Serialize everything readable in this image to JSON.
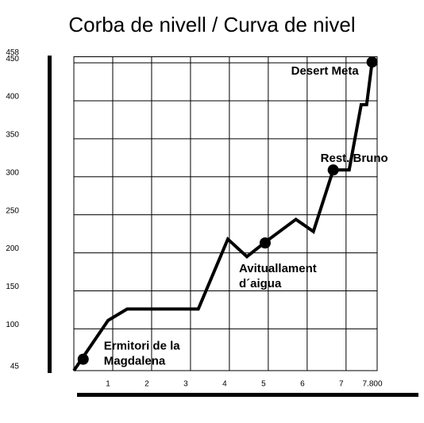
{
  "chart_data": {
    "type": "line",
    "title": "Corba de nivell / Curva de nivel",
    "x": [
      0,
      0.88,
      1.37,
      3.2,
      3.96,
      4.45,
      4.92,
      5.71,
      6.16,
      6.67,
      7.08,
      7.39,
      7.53,
      7.67
    ],
    "values": [
      45,
      111,
      126,
      126,
      218,
      195,
      214,
      244,
      228,
      309,
      309,
      395,
      395,
      451
    ],
    "color": "#000000",
    "xlim": [
      0,
      7.8
    ],
    "xticks": [
      1,
      2,
      3,
      4,
      5,
      6,
      7,
      {
        "value": 7.8,
        "label": "7.800"
      }
    ],
    "ylim": [
      45,
      458
    ],
    "yticks": [
      45,
      100,
      150,
      200,
      250,
      300,
      350,
      400,
      450,
      458
    ],
    "grid": true,
    "points": [
      {
        "x": 0.24,
        "y": 60,
        "label": [
          "Ermitori de la",
          "Magdalena"
        ]
      },
      {
        "x": 4.92,
        "y": 213,
        "label": [
          "Avituallament",
          "d´aigua"
        ]
      },
      {
        "x": 6.67,
        "y": 309,
        "label": [
          "Rest. Bruno"
        ]
      },
      {
        "x": 7.67,
        "y": 451,
        "label": [
          "Desert Meta"
        ]
      }
    ]
  }
}
